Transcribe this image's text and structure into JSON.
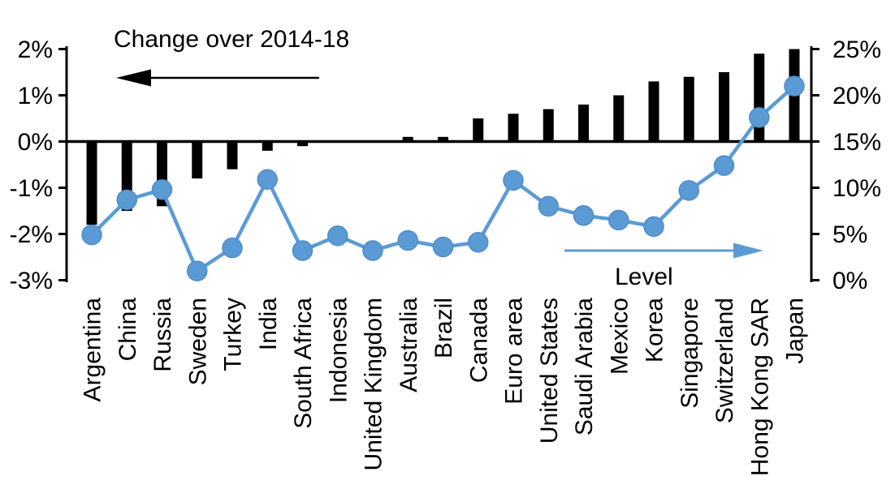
{
  "chart_data": {
    "type": "combo",
    "description": "Dual-axis chart: black bars show change over 2014-18 (left axis) and blue line with markers shows level (right axis), by country",
    "categories": [
      "Argentina",
      "China",
      "Russia",
      "Sweden",
      "Turkey",
      "India",
      "South Africa",
      "Indonesia",
      "United Kingdom",
      "Australia",
      "Brazil",
      "Canada",
      "Euro area",
      "United States",
      "Saudi Arabia",
      "Mexico",
      "Korea",
      "Singapore",
      "Switzerland",
      "Hong Kong SAR",
      "Japan"
    ],
    "series": [
      {
        "name": "Change over 2014-18",
        "type": "bar",
        "axis": "left",
        "unit": "%",
        "values": [
          -1.8,
          -1.5,
          -1.4,
          -0.8,
          -0.6,
          -0.2,
          -0.1,
          0,
          0,
          0.1,
          0.1,
          0.5,
          0.6,
          0.7,
          0.8,
          1.0,
          1.3,
          1.4,
          1.5,
          1.9,
          2.0
        ]
      },
      {
        "name": "Level",
        "type": "line",
        "axis": "right",
        "unit": "%",
        "values": [
          4.9,
          8.7,
          9.8,
          1.0,
          3.5,
          10.9,
          3.2,
          4.8,
          3.2,
          4.3,
          3.6,
          4.1,
          10.8,
          8.0,
          7.0,
          6.5,
          5.8,
          9.7,
          12.4,
          17.6,
          21.0
        ]
      }
    ],
    "left_axis": {
      "min": -3,
      "max": 2,
      "tick_step": 1,
      "tick_labels": [
        "2%",
        "1%",
        "0%",
        "-1%",
        "-2%",
        "-3%"
      ]
    },
    "right_axis": {
      "min": 0,
      "max": 25,
      "tick_step": 5,
      "tick_labels": [
        "25%",
        "20%",
        "15%",
        "10%",
        "5%",
        "0%"
      ]
    },
    "grid": false,
    "legend": "in-plot text labels with direction arrows",
    "colors": {
      "bar": "#000000",
      "line": "#5B9BD5",
      "marker_edge": "#4E8CC9"
    }
  }
}
